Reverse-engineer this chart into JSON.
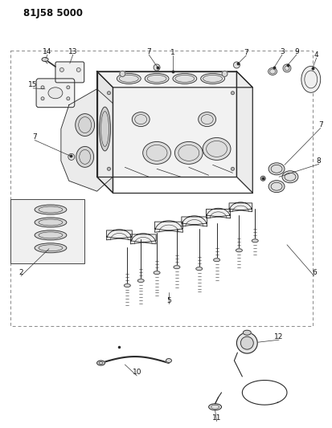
{
  "title_code": "81J58 5000",
  "bg_color": "#ffffff",
  "line_color": "#2a2a2a",
  "label_color": "#111111",
  "fig_width": 4.14,
  "fig_height": 5.33,
  "dpi": 100,
  "dash_color": "#888888",
  "fill_light": "#f5f5f5",
  "fill_mid": "#e8e8e8"
}
